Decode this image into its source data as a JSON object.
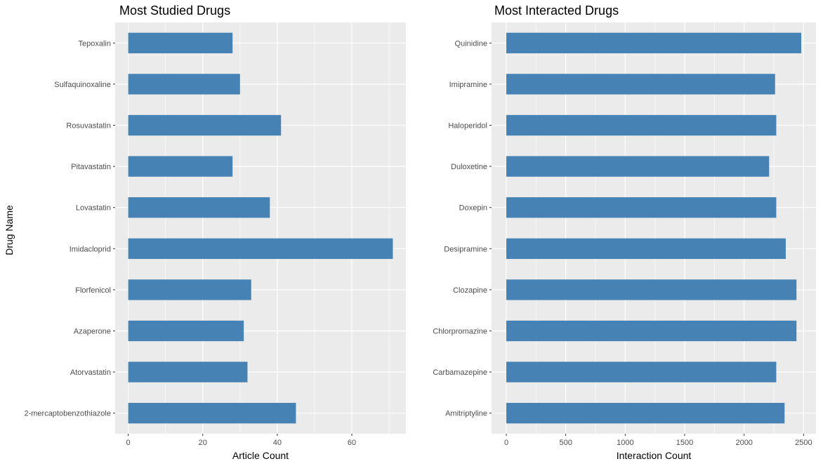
{
  "shared": {
    "ylabel": "Drug Name",
    "bar_color": "#4682b4",
    "panel_bg": "#ebebeb",
    "grid_color": "#ffffff"
  },
  "chart_data": [
    {
      "type": "bar",
      "orientation": "horizontal",
      "title": "Most Studied Drugs",
      "xlabel": "Article Count",
      "ylabel": "Drug Name",
      "xlim": [
        -3.5,
        74.5
      ],
      "xticks": [
        0,
        20,
        40,
        60
      ],
      "grid": true,
      "categories": [
        "Tepoxalin",
        "Sulfaquinoxaline",
        "Rosuvastatin",
        "Pitavastatin",
        "Lovastatin",
        "Imidacloprid",
        "Florfenicol",
        "Azaperone",
        "Atorvastatin",
        "2-mercaptobenzothiazole"
      ],
      "values": [
        28,
        30,
        41,
        28,
        38,
        71,
        33,
        31,
        32,
        45
      ]
    },
    {
      "type": "bar",
      "orientation": "horizontal",
      "title": "Most Interacted Drugs",
      "xlabel": "Interaction Count",
      "ylabel": "",
      "xlim": [
        -124,
        2604
      ],
      "xticks": [
        0,
        500,
        1000,
        1500,
        2000,
        2500
      ],
      "grid": true,
      "categories": [
        "Quinidine",
        "Imipramine",
        "Haloperidol",
        "Duloxetine",
        "Doxepin",
        "Desipramine",
        "Clozapine",
        "Chlorpromazine",
        "Carbamazepine",
        "Amitriptyline"
      ],
      "values": [
        2480,
        2260,
        2270,
        2210,
        2270,
        2350,
        2440,
        2440,
        2270,
        2340
      ]
    }
  ]
}
